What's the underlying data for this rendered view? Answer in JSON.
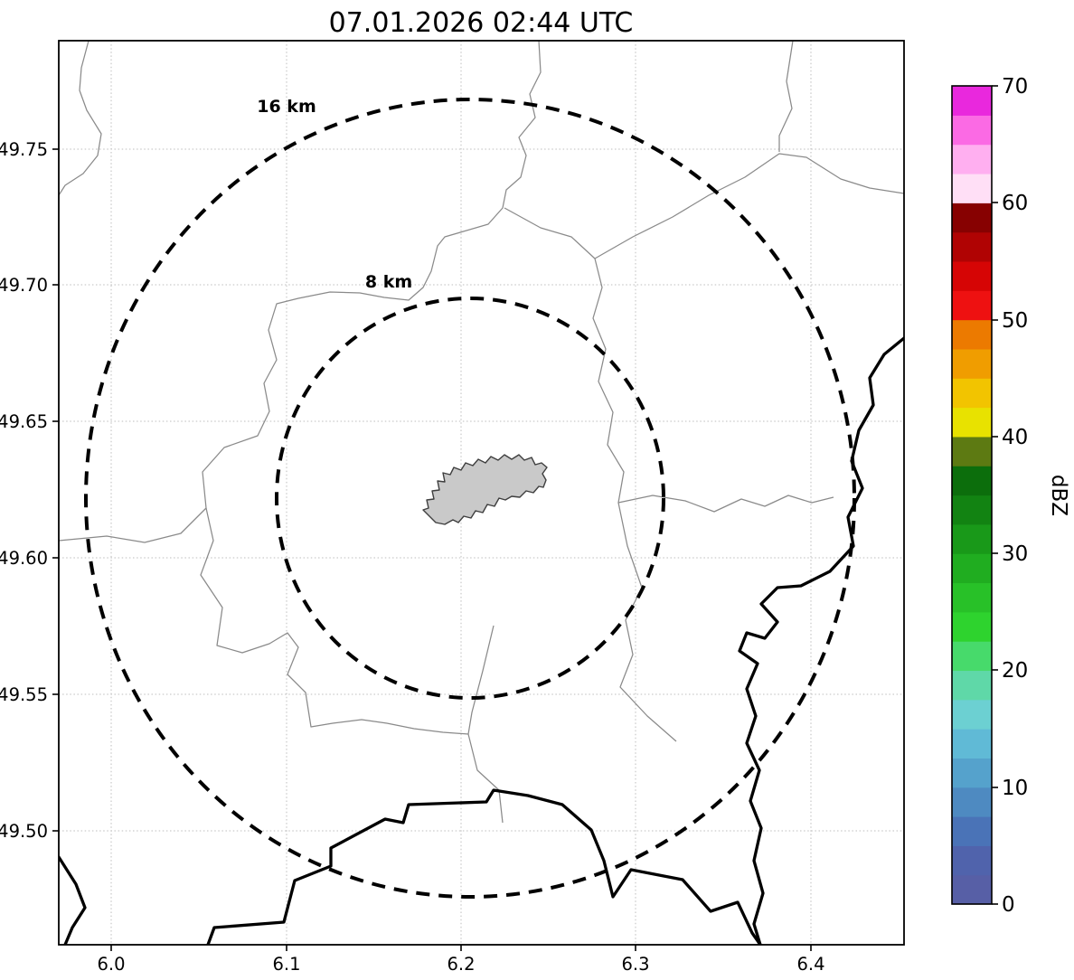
{
  "title": "07.01.2026 02:44 UTC",
  "axes": {
    "x_ticks": [
      "6.0",
      "6.1",
      "6.2",
      "6.3",
      "6.4"
    ],
    "y_ticks": [
      "49.75",
      "49.70",
      "49.65",
      "49.60",
      "49.55",
      "49.50"
    ]
  },
  "rings": {
    "outer_label": "16 km",
    "inner_label": "8 km"
  },
  "colorbar": {
    "label": "dBZ",
    "tick_labels": [
      "0",
      "10",
      "20",
      "30",
      "40",
      "50",
      "60",
      "70"
    ],
    "min_dbz": 0,
    "max_dbz": 70,
    "step_dbz": 2.5,
    "colors_bottom_to_top": [
      "#575fa6",
      "#5063ac",
      "#4a73b7",
      "#4e8ac1",
      "#55a2cc",
      "#60bad6",
      "#6cd0d2",
      "#5fd8a8",
      "#47da6b",
      "#2ed32e",
      "#28c128",
      "#20ad20",
      "#199919",
      "#128312",
      "#0c6e0c",
      "#5d7a12",
      "#e8e200",
      "#f2c400",
      "#f09d00",
      "#ec7a00",
      "#ee1111",
      "#d60505",
      "#b00303",
      "#870101",
      "#ffdff6",
      "#ffaff0",
      "#fb6ae4",
      "#e928dd"
    ]
  },
  "chart_data": {
    "type": "radar_reflectivity_map",
    "title": "07.01.2026 02:44 UTC",
    "x_axis": {
      "ticks": [
        6.0,
        6.1,
        6.2,
        6.3,
        6.4
      ],
      "range": [
        5.97,
        6.45
      ]
    },
    "y_axis": {
      "ticks": [
        49.75,
        49.7,
        49.65,
        49.6,
        49.55,
        49.5
      ],
      "range": [
        49.46,
        49.79
      ]
    },
    "grid": true,
    "range_rings_km": [
      8,
      16
    ],
    "ring_center": {
      "lon": 6.205,
      "lat": 49.62
    },
    "colorbar": {
      "label": "dBZ",
      "min": 0,
      "max": 70,
      "ticks": [
        0,
        10,
        20,
        30,
        40,
        50,
        60,
        70
      ]
    },
    "echoes": []
  }
}
